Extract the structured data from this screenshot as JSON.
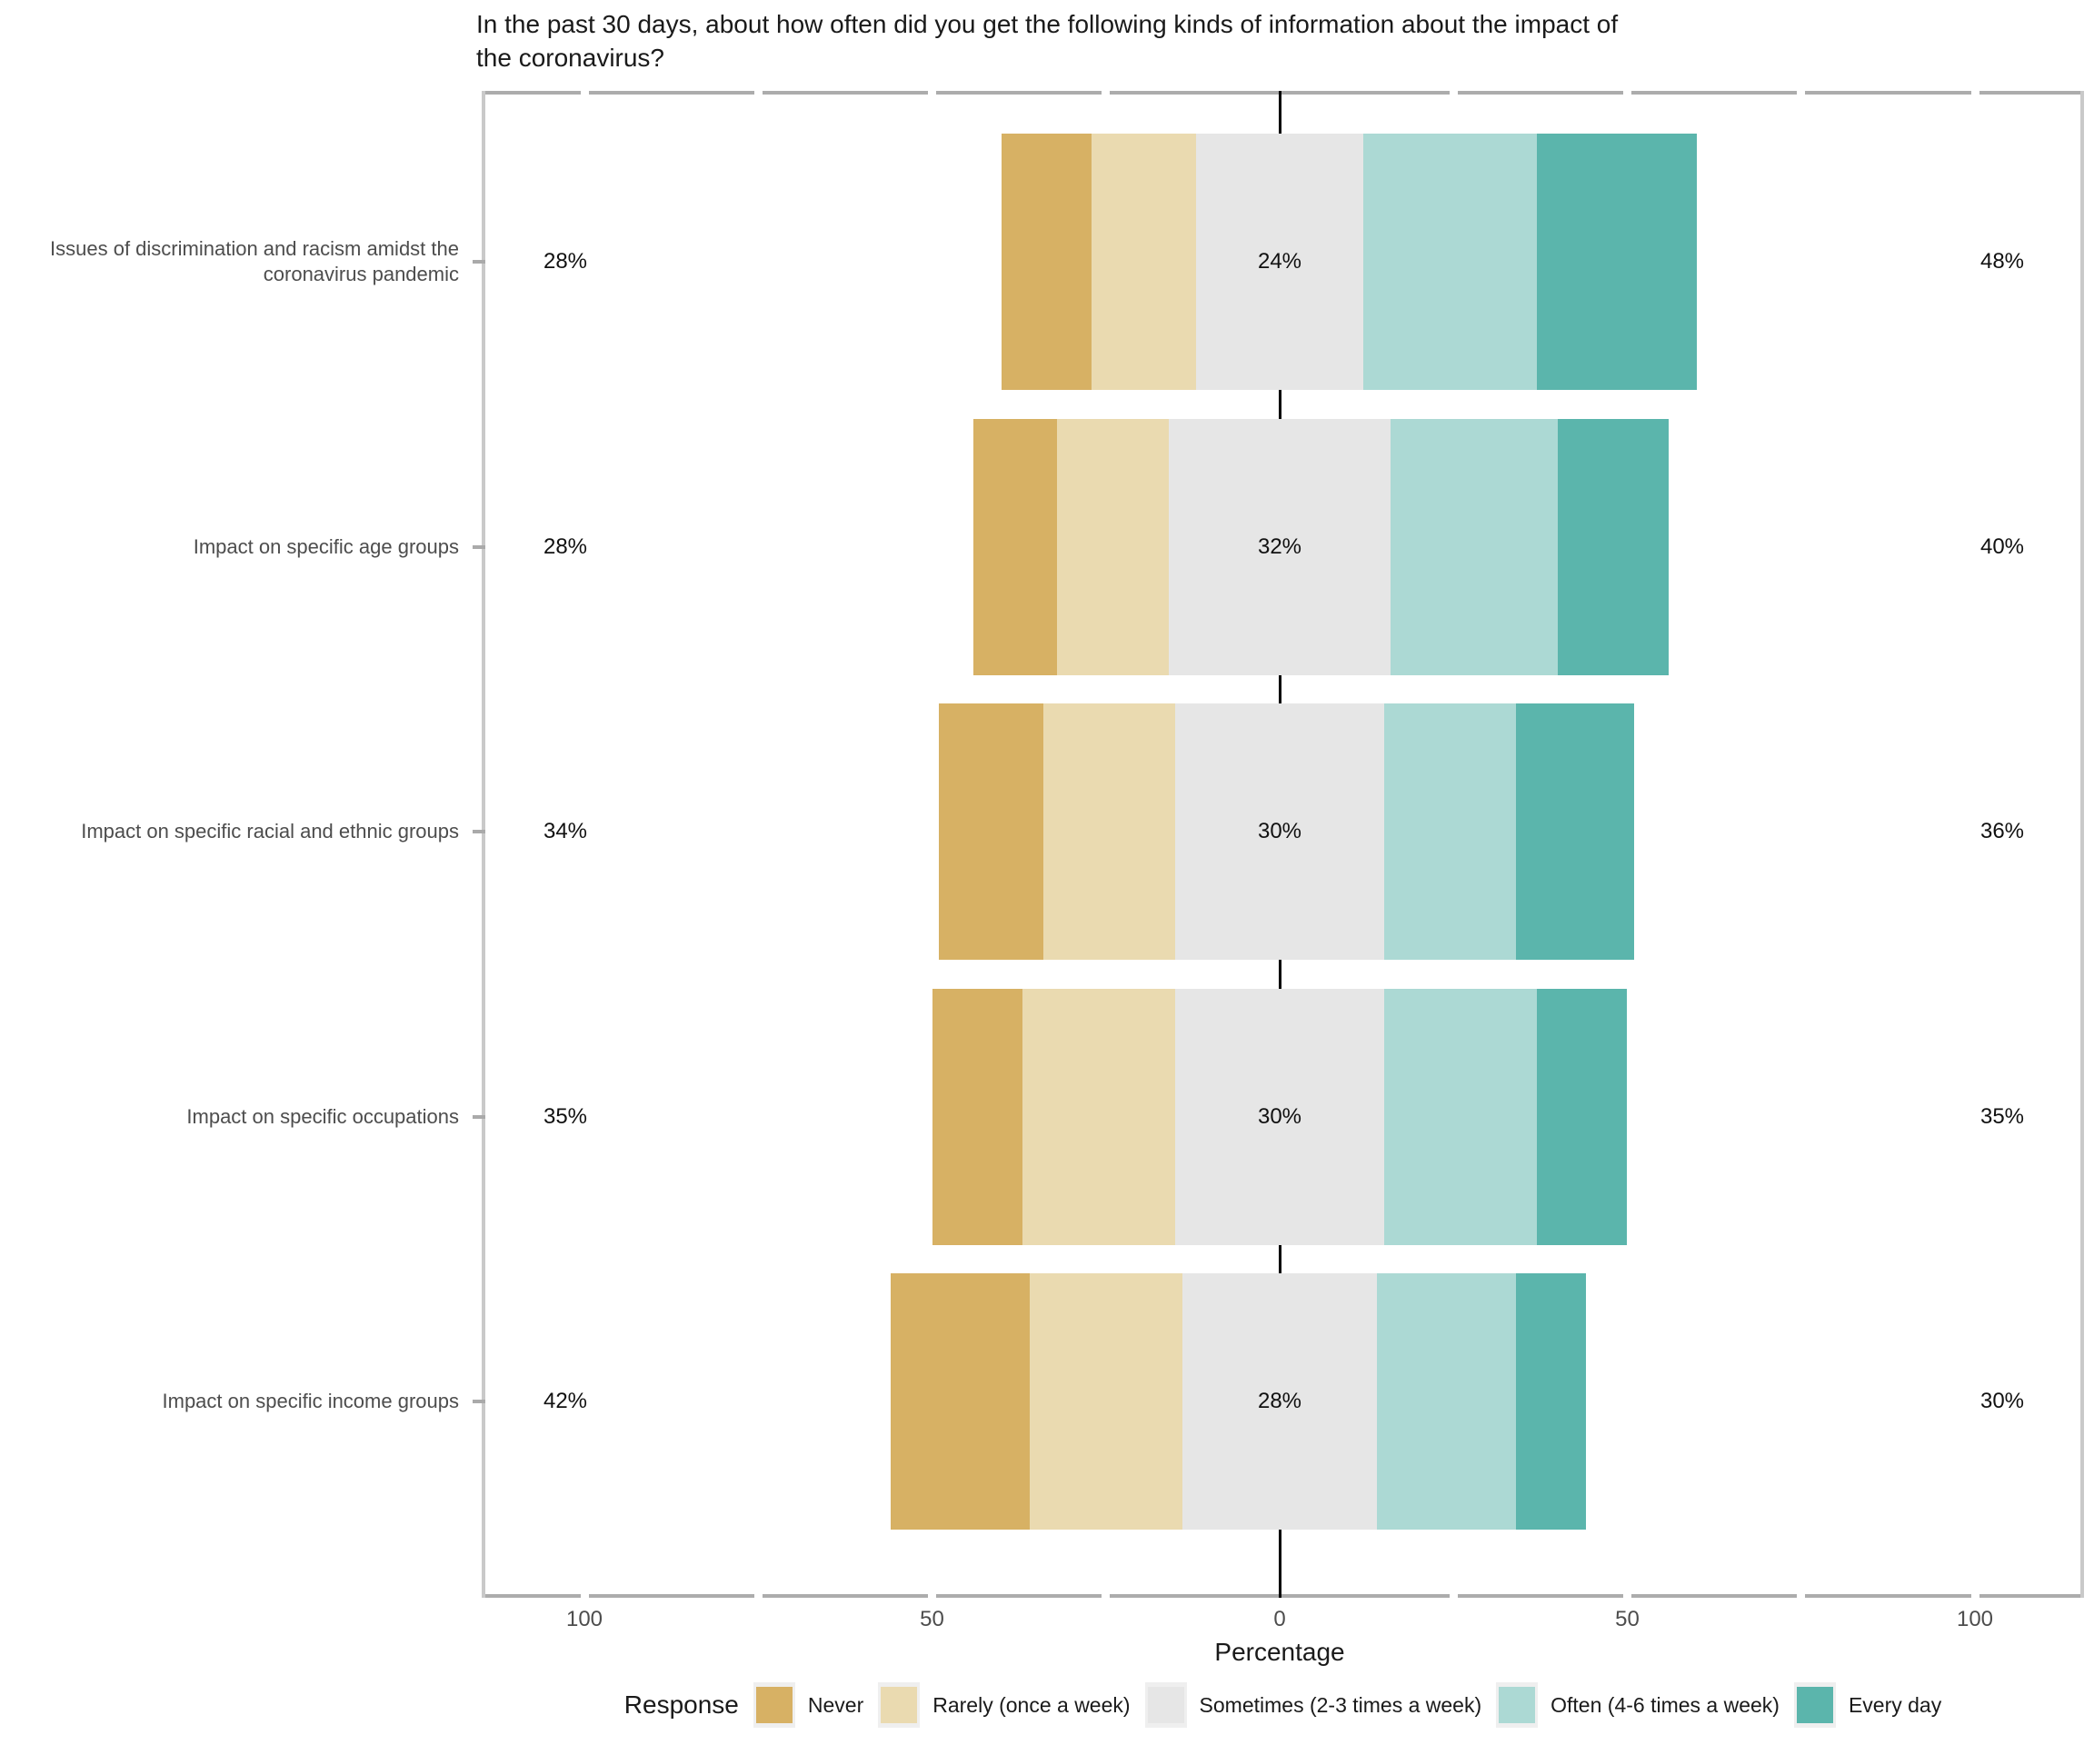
{
  "title": "In the past 30 days, about how often did you get the following kinds of information about the impact of the coronavirus?",
  "chart_data": {
    "type": "bar",
    "subtype": "diverging_stacked_likert",
    "title": "In the past 30 days, about how often did you get the following kinds of information about the impact of the coronavirus?",
    "xlabel": "Percentage",
    "xlim": [
      -115,
      115
    ],
    "x_ticks": [
      -100,
      -50,
      0,
      50,
      100
    ],
    "x_tick_labels": [
      "100",
      "50",
      "0",
      "50",
      "100"
    ],
    "x_minor_ticks": [
      -100,
      -75,
      -50,
      -25,
      25,
      50,
      75,
      100
    ],
    "grid": false,
    "legend_title": "Response",
    "legend_position": "bottom",
    "response_levels": [
      "Never",
      "Rarely (once a week)",
      "Sometimes (2-3 times a week)",
      "Often (4-6 times a week)",
      "Every day"
    ],
    "colors": [
      "#D7B164",
      "#EADAB0",
      "#E6E6E6",
      "#ACD9D4",
      "#5BB5AC"
    ],
    "centering_rule": "middle category (Sometimes) is centered on zero; left label = Never + Rarely, center label = Sometimes, right label = Often + Every day",
    "categories": [
      "Issues of discrimination and racism amidst the coronavirus pandemic",
      "Impact on specific age groups",
      "Impact on specific racial and ethnic groups",
      "Impact on specific occupations",
      "Impact on specific income groups"
    ],
    "rows": [
      {
        "category": "Issues of discrimination and racism amidst the coronavirus pandemic",
        "segments": [
          13,
          15,
          24,
          25,
          23
        ],
        "label_left": "28%",
        "label_center": "24%",
        "label_right": "48%"
      },
      {
        "category": "Impact on specific age groups",
        "segments": [
          12,
          16,
          32,
          24,
          16
        ],
        "label_left": "28%",
        "label_center": "32%",
        "label_right": "40%"
      },
      {
        "category": "Impact on specific racial and ethnic groups",
        "segments": [
          15,
          19,
          30,
          19,
          17
        ],
        "label_left": "34%",
        "label_center": "30%",
        "label_right": "36%"
      },
      {
        "category": "Impact on specific occupations",
        "segments": [
          13,
          22,
          30,
          22,
          13
        ],
        "label_left": "35%",
        "label_center": "30%",
        "label_right": "35%"
      },
      {
        "category": "Impact on specific income groups",
        "segments": [
          20,
          22,
          28,
          20,
          10
        ],
        "label_left": "42%",
        "label_center": "28%",
        "label_right": "30%"
      }
    ]
  }
}
